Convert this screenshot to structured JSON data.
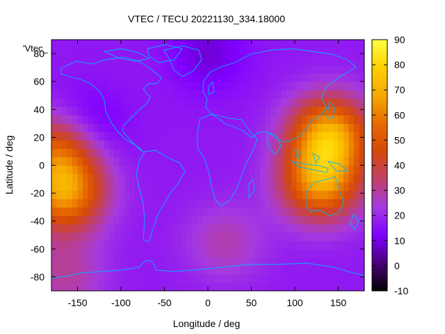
{
  "chart_data": {
    "type": "heatmap",
    "title": "VTEC / TECU 20221130_334.18000",
    "xlabel": "Longitude / deg",
    "ylabel": "Latitude / deg",
    "legend_label": "'Vtec_",
    "xlim": [
      -180,
      180
    ],
    "ylim": [
      -90,
      90
    ],
    "x_ticks": [
      -150,
      -100,
      -50,
      0,
      50,
      100,
      150
    ],
    "y_ticks": [
      -80,
      -60,
      -40,
      -20,
      0,
      20,
      40,
      60,
      80
    ],
    "colorbar": {
      "range": [
        -10,
        90
      ],
      "ticks": [
        -10,
        0,
        10,
        20,
        30,
        40,
        50,
        60,
        70,
        80,
        90
      ],
      "palette": [
        "#000000",
        "#4a007a",
        "#8000ff",
        "#a53ae0",
        "#c0406a",
        "#d4480a",
        "#e86a00",
        "#f5a800",
        "#ffd000",
        "#ffff40"
      ]
    },
    "field_features": [
      {
        "region": "background",
        "lon": 0,
        "lat": 0,
        "vtec": 17
      },
      {
        "region": "south-pacific-tongue",
        "lon": -165,
        "lat": -20,
        "vtec": 62
      },
      {
        "region": "central-pacific-arc",
        "lon": -170,
        "lat": 12,
        "vtec": 52
      },
      {
        "region": "indian-ocean-asia-crest",
        "lon": 140,
        "lat": 22,
        "vtec": 68
      },
      {
        "region": "maritime-continent-australia",
        "lon": 130,
        "lat": -12,
        "vtec": 63
      },
      {
        "region": "southern-ocean-south-pacific",
        "lon": 20,
        "lat": -55,
        "vtec": 28
      },
      {
        "region": "antarctic-pacific-sector",
        "lon": -165,
        "lat": -78,
        "vtec": 30
      },
      {
        "region": "north-pacific-low",
        "lon": -145,
        "lat": 25,
        "vtec": 3
      },
      {
        "region": "north-pole-low",
        "lon": 0,
        "lat": 80,
        "vtec": 9
      }
    ],
    "overlay": "coastlines"
  }
}
